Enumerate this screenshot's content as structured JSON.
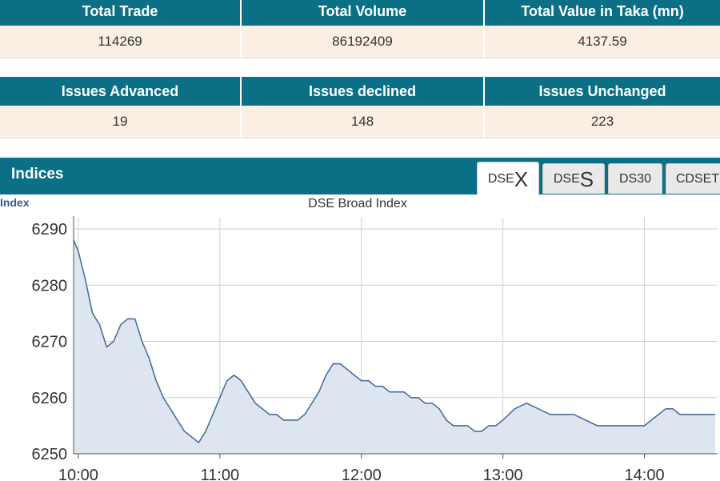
{
  "market_summary": {
    "headers": [
      "Total Trade",
      "Total Volume",
      "Total Value in Taka (mn)"
    ],
    "values": [
      "114269",
      "86192409",
      "4137.59"
    ]
  },
  "issues_summary": {
    "headers": [
      "Issues Advanced",
      "Issues declined",
      "Issues Unchanged"
    ],
    "values": [
      "19",
      "148",
      "223"
    ]
  },
  "indices": {
    "title": "Indices",
    "tabs": [
      {
        "prefix": "DSE",
        "suffix": "X",
        "active": true
      },
      {
        "prefix": "DSE",
        "suffix": "S",
        "active": false
      },
      {
        "prefix": "DS30",
        "suffix": "",
        "active": false
      },
      {
        "prefix": "CDSET",
        "suffix": "",
        "active": false
      }
    ]
  },
  "colors": {
    "header_bg": "#0b6f86",
    "value_row_bg": "#fbefe4",
    "line": "#4a6f99",
    "area": "#dde6f0"
  },
  "chart_data": {
    "type": "area",
    "title": "DSE Broad Index",
    "ylabel": "Index",
    "xlabel": "",
    "x_ticks": [
      "10:00",
      "11:00",
      "12:00",
      "13:00",
      "14:00"
    ],
    "y_ticks": [
      6250,
      6260,
      6270,
      6280,
      6290
    ],
    "ylim": [
      6250,
      6292
    ],
    "xlim": [
      "09:58",
      "14:31"
    ],
    "grid": true,
    "series": [
      {
        "x": [
          "09:58",
          "10:00",
          "10:03",
          "10:06",
          "10:09",
          "10:12",
          "10:15",
          "10:18",
          "10:21",
          "10:24",
          "10:27",
          "10:30",
          "10:33",
          "10:36",
          "10:39",
          "10:42",
          "10:45",
          "10:48",
          "10:51",
          "10:54",
          "10:57",
          "11:00",
          "11:03",
          "11:06",
          "11:09",
          "11:12",
          "11:15",
          "11:18",
          "11:21",
          "11:24",
          "11:27",
          "11:30",
          "11:33",
          "11:36",
          "11:39",
          "11:42",
          "11:45",
          "11:48",
          "11:51",
          "11:54",
          "11:57",
          "12:00",
          "12:03",
          "12:06",
          "12:09",
          "12:12",
          "12:15",
          "12:18",
          "12:21",
          "12:24",
          "12:27",
          "12:30",
          "12:33",
          "12:36",
          "12:39",
          "12:42",
          "12:45",
          "12:48",
          "12:51",
          "12:54",
          "12:57",
          "13:00",
          "13:05",
          "13:10",
          "13:15",
          "13:20",
          "13:25",
          "13:30",
          "13:35",
          "13:40",
          "13:45",
          "13:50",
          "13:55",
          "14:00",
          "14:03",
          "14:06",
          "14:09",
          "14:12",
          "14:15",
          "14:18",
          "14:21",
          "14:24",
          "14:27",
          "14:30"
        ],
        "values": [
          6288,
          6286,
          6281,
          6275,
          6273,
          6269,
          6270,
          6273,
          6274,
          6274,
          6270,
          6267,
          6263,
          6260,
          6258,
          6256,
          6254,
          6253,
          6252,
          6254,
          6257,
          6260,
          6263,
          6264,
          6263,
          6261,
          6259,
          6258,
          6257,
          6257,
          6256,
          6256,
          6256,
          6257,
          6259,
          6261,
          6264,
          6266,
          6266,
          6265,
          6264,
          6263,
          6263,
          6262,
          6262,
          6261,
          6261,
          6261,
          6260,
          6260,
          6259,
          6259,
          6258,
          6256,
          6255,
          6255,
          6255,
          6254,
          6254,
          6255,
          6255,
          6256,
          6258,
          6259,
          6258,
          6257,
          6257,
          6257,
          6256,
          6255,
          6255,
          6255,
          6255,
          6255,
          6256,
          6257,
          6258,
          6258,
          6257,
          6257,
          6257,
          6257,
          6257,
          6257
        ]
      }
    ]
  }
}
